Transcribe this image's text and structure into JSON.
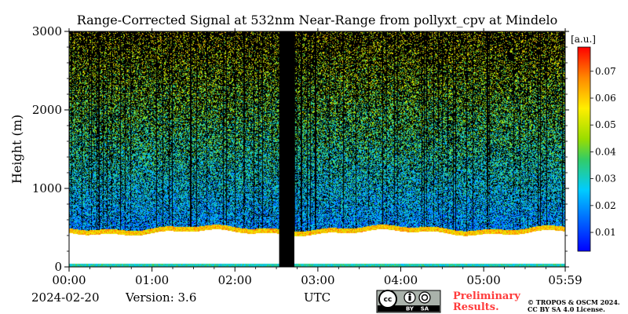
{
  "chart_data": {
    "type": "heatmap",
    "title": "Range-Corrected Signal at 532nm Near-Range from pollyxt_cpv at Mindelo",
    "ylabel": "Height (m)",
    "xlabel": "UTC",
    "x_ticks": [
      "00:00",
      "01:00",
      "02:00",
      "03:00",
      "04:00",
      "05:00",
      "05:59"
    ],
    "x_range_hours": [
      0,
      5.983
    ],
    "y_ticks": [
      0,
      1000,
      2000,
      3000
    ],
    "ylim": [
      0,
      3000
    ],
    "colorbar": {
      "unit": "[a.u.]",
      "ticks": [
        0.01,
        0.02,
        0.03,
        0.04,
        0.05,
        0.06,
        0.07
      ],
      "range": [
        0.003,
        0.079
      ],
      "colormap": "jet"
    },
    "lowest_signal_height_m": 500,
    "data_gap_utc": [
      "02:32",
      "02:43"
    ]
  },
  "footer": {
    "date": "2024-02-20",
    "version": "Version: 3.6",
    "preliminary_line1": "Preliminary",
    "preliminary_line2": "Results.",
    "copyright_line1": "© TROPOS & OSCM 2024.",
    "copyright_line2": "CC BY SA 4.0 License.",
    "license_by": "BY",
    "license_sa": "SA",
    "license_cc": "cc"
  }
}
